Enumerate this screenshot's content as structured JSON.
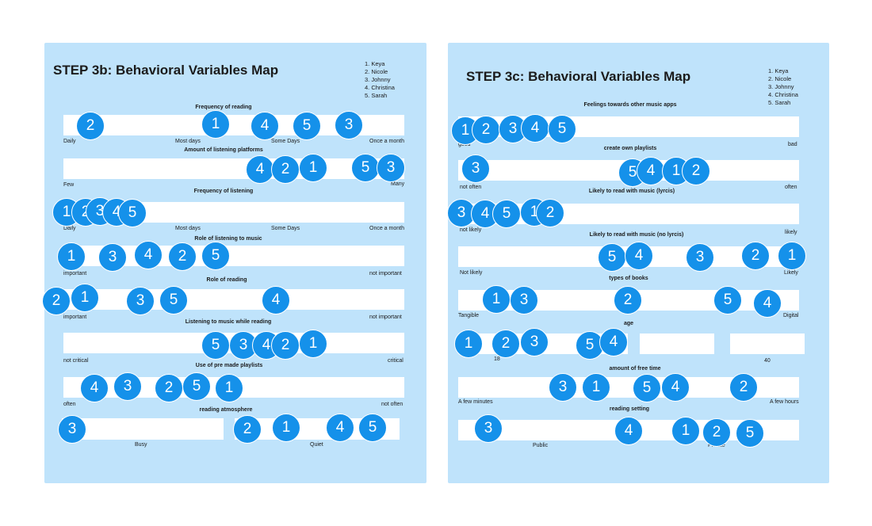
{
  "left": {
    "title": "STEP 3b:  Behavioral Variables Map",
    "legend": [
      "1. Keya",
      "2. Nicole",
      "3. Johnny",
      "4. Christina",
      "5. Sarah"
    ],
    "variables": [
      {
        "label": "Frequency of reading",
        "anchors": [
          "Daily",
          "Most days",
          "Some Days",
          "Once a month"
        ]
      },
      {
        "label": "Amount of listening platforms",
        "anchors": [
          "Few",
          "Many"
        ]
      },
      {
        "label": "Frequency of listening",
        "anchors": [
          "Daily",
          "Most days",
          "Some Days",
          "Once a month"
        ]
      },
      {
        "label": "Role of listening to music",
        "anchors": [
          "important",
          "not important"
        ]
      },
      {
        "label": "Role of reading",
        "anchors": [
          "important",
          "not important"
        ]
      },
      {
        "label": "Listening to music while reading",
        "anchors": [
          "not critical",
          "critical"
        ]
      },
      {
        "label": "Use of pre made playlists",
        "anchors": [
          "often",
          "not often"
        ]
      },
      {
        "label": "reading atmosphere",
        "anchors": [
          "Busy",
          "Quiet"
        ]
      }
    ]
  },
  "right": {
    "title": "STEP 3c:  Behavioral Variables Map",
    "legend": [
      "1. Keya",
      "2. Nicole",
      "3. Johnny",
      "4. Christina",
      "5. Sarah"
    ],
    "variables": [
      {
        "label": "Feelings towards other music apps",
        "anchors": [
          "good",
          "bad"
        ]
      },
      {
        "label": "create own playlists",
        "anchors": [
          "not often",
          "often"
        ]
      },
      {
        "label": "Likely to read with music (lyrcis)",
        "anchors": [
          "not likely",
          "likely"
        ]
      },
      {
        "label": "Likely to read with music (no lyrcis)",
        "anchors": [
          "Not likely",
          "Likely"
        ]
      },
      {
        "label": "types of books",
        "anchors": [
          "Tangible",
          "Digital"
        ]
      },
      {
        "label": "age",
        "anchors": [
          "18",
          "40"
        ]
      },
      {
        "label": "amount of free time",
        "anchors": [
          "A few minutes",
          "A few hours"
        ]
      },
      {
        "label": "reading setting",
        "anchors": [
          "Public",
          "Private"
        ]
      }
    ]
  },
  "dots": [
    {
      "n": "2"
    },
    {
      "n": "1"
    },
    {
      "n": "4"
    },
    {
      "n": "5"
    },
    {
      "n": "3"
    },
    {
      "n": "4"
    },
    {
      "n": "2"
    },
    {
      "n": "1"
    },
    {
      "n": "5"
    },
    {
      "n": "3"
    },
    {
      "n": "1"
    },
    {
      "n": "2"
    },
    {
      "n": "3"
    },
    {
      "n": "4"
    },
    {
      "n": "5"
    },
    {
      "n": "1"
    },
    {
      "n": "3"
    },
    {
      "n": "4"
    },
    {
      "n": "2"
    },
    {
      "n": "5"
    },
    {
      "n": "2"
    },
    {
      "n": "1"
    },
    {
      "n": "3"
    },
    {
      "n": "5"
    },
    {
      "n": "4"
    },
    {
      "n": "5"
    },
    {
      "n": "3"
    },
    {
      "n": "4"
    },
    {
      "n": "2"
    },
    {
      "n": "1"
    },
    {
      "n": "4"
    },
    {
      "n": "3"
    },
    {
      "n": "2"
    },
    {
      "n": "5"
    },
    {
      "n": "1"
    },
    {
      "n": "3"
    },
    {
      "n": "2"
    },
    {
      "n": "1"
    },
    {
      "n": "4"
    },
    {
      "n": "5"
    },
    {
      "n": "1"
    },
    {
      "n": "2"
    },
    {
      "n": "3"
    },
    {
      "n": "4"
    },
    {
      "n": "5"
    },
    {
      "n": "3"
    },
    {
      "n": "5"
    },
    {
      "n": "4"
    },
    {
      "n": "1"
    },
    {
      "n": "2"
    },
    {
      "n": "3"
    },
    {
      "n": "4"
    },
    {
      "n": "5"
    },
    {
      "n": "1"
    },
    {
      "n": "2"
    },
    {
      "n": "5"
    },
    {
      "n": "4"
    },
    {
      "n": "3"
    },
    {
      "n": "2"
    },
    {
      "n": "1"
    },
    {
      "n": "1"
    },
    {
      "n": "3"
    },
    {
      "n": "2"
    },
    {
      "n": "5"
    },
    {
      "n": "4"
    },
    {
      "n": "1"
    },
    {
      "n": "2"
    },
    {
      "n": "3"
    },
    {
      "n": "5"
    },
    {
      "n": "4"
    },
    {
      "n": "3"
    },
    {
      "n": "1"
    },
    {
      "n": "5"
    },
    {
      "n": "4"
    },
    {
      "n": "2"
    },
    {
      "n": "3"
    },
    {
      "n": "4"
    },
    {
      "n": "1"
    },
    {
      "n": "2"
    },
    {
      "n": "5"
    }
  ]
}
